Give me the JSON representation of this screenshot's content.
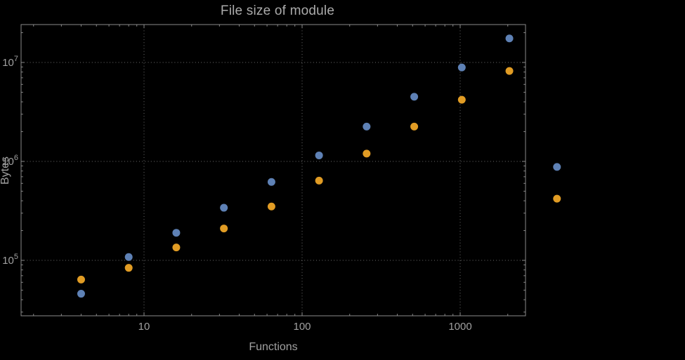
{
  "style": {
    "colors": {
      "background": "#000000",
      "frame": "#8a8a8a",
      "grid": "#6e6e6e",
      "tick-text": "#a0a0a0",
      "title-text": "#ababab",
      "axis-text": "#a0a0a0"
    }
  },
  "chart_data": {
    "type": "scatter",
    "title": "File size of module",
    "xlabel": "Functions",
    "ylabel": "Bytes",
    "x_scale": "log",
    "y_scale": "log",
    "grid": "dotted lines at decade ticks",
    "legend": "none",
    "x_range": [
      1.7,
      2600
    ],
    "y_range": [
      28000,
      24000000
    ],
    "x": [
      4,
      8,
      16,
      32,
      64,
      128,
      256,
      512,
      1024,
      2048,
      4096
    ],
    "series": [
      {
        "name": "series-1-blue",
        "color": "#5e81b5",
        "values": [
          46000,
          108000,
          190000,
          340000,
          620000,
          1150000,
          2250000,
          4500000,
          8900000,
          17500000,
          880000
        ]
      },
      {
        "name": "series-2-orange",
        "color": "#e19c24",
        "values": [
          64000,
          84000,
          135000,
          210000,
          350000,
          640000,
          1200000,
          2250000,
          4200000,
          8200000,
          420000
        ]
      }
    ],
    "x_ticks": [
      {
        "value": 10,
        "label": "10"
      },
      {
        "value": 100,
        "label": "100"
      },
      {
        "value": 1000,
        "label": "1000"
      }
    ],
    "y_ticks": [
      {
        "value": 100000,
        "mantissa": "10",
        "exponent": "5"
      },
      {
        "value": 1000000,
        "mantissa": "10",
        "exponent": "6"
      },
      {
        "value": 10000000,
        "mantissa": "10",
        "exponent": "7"
      }
    ]
  }
}
